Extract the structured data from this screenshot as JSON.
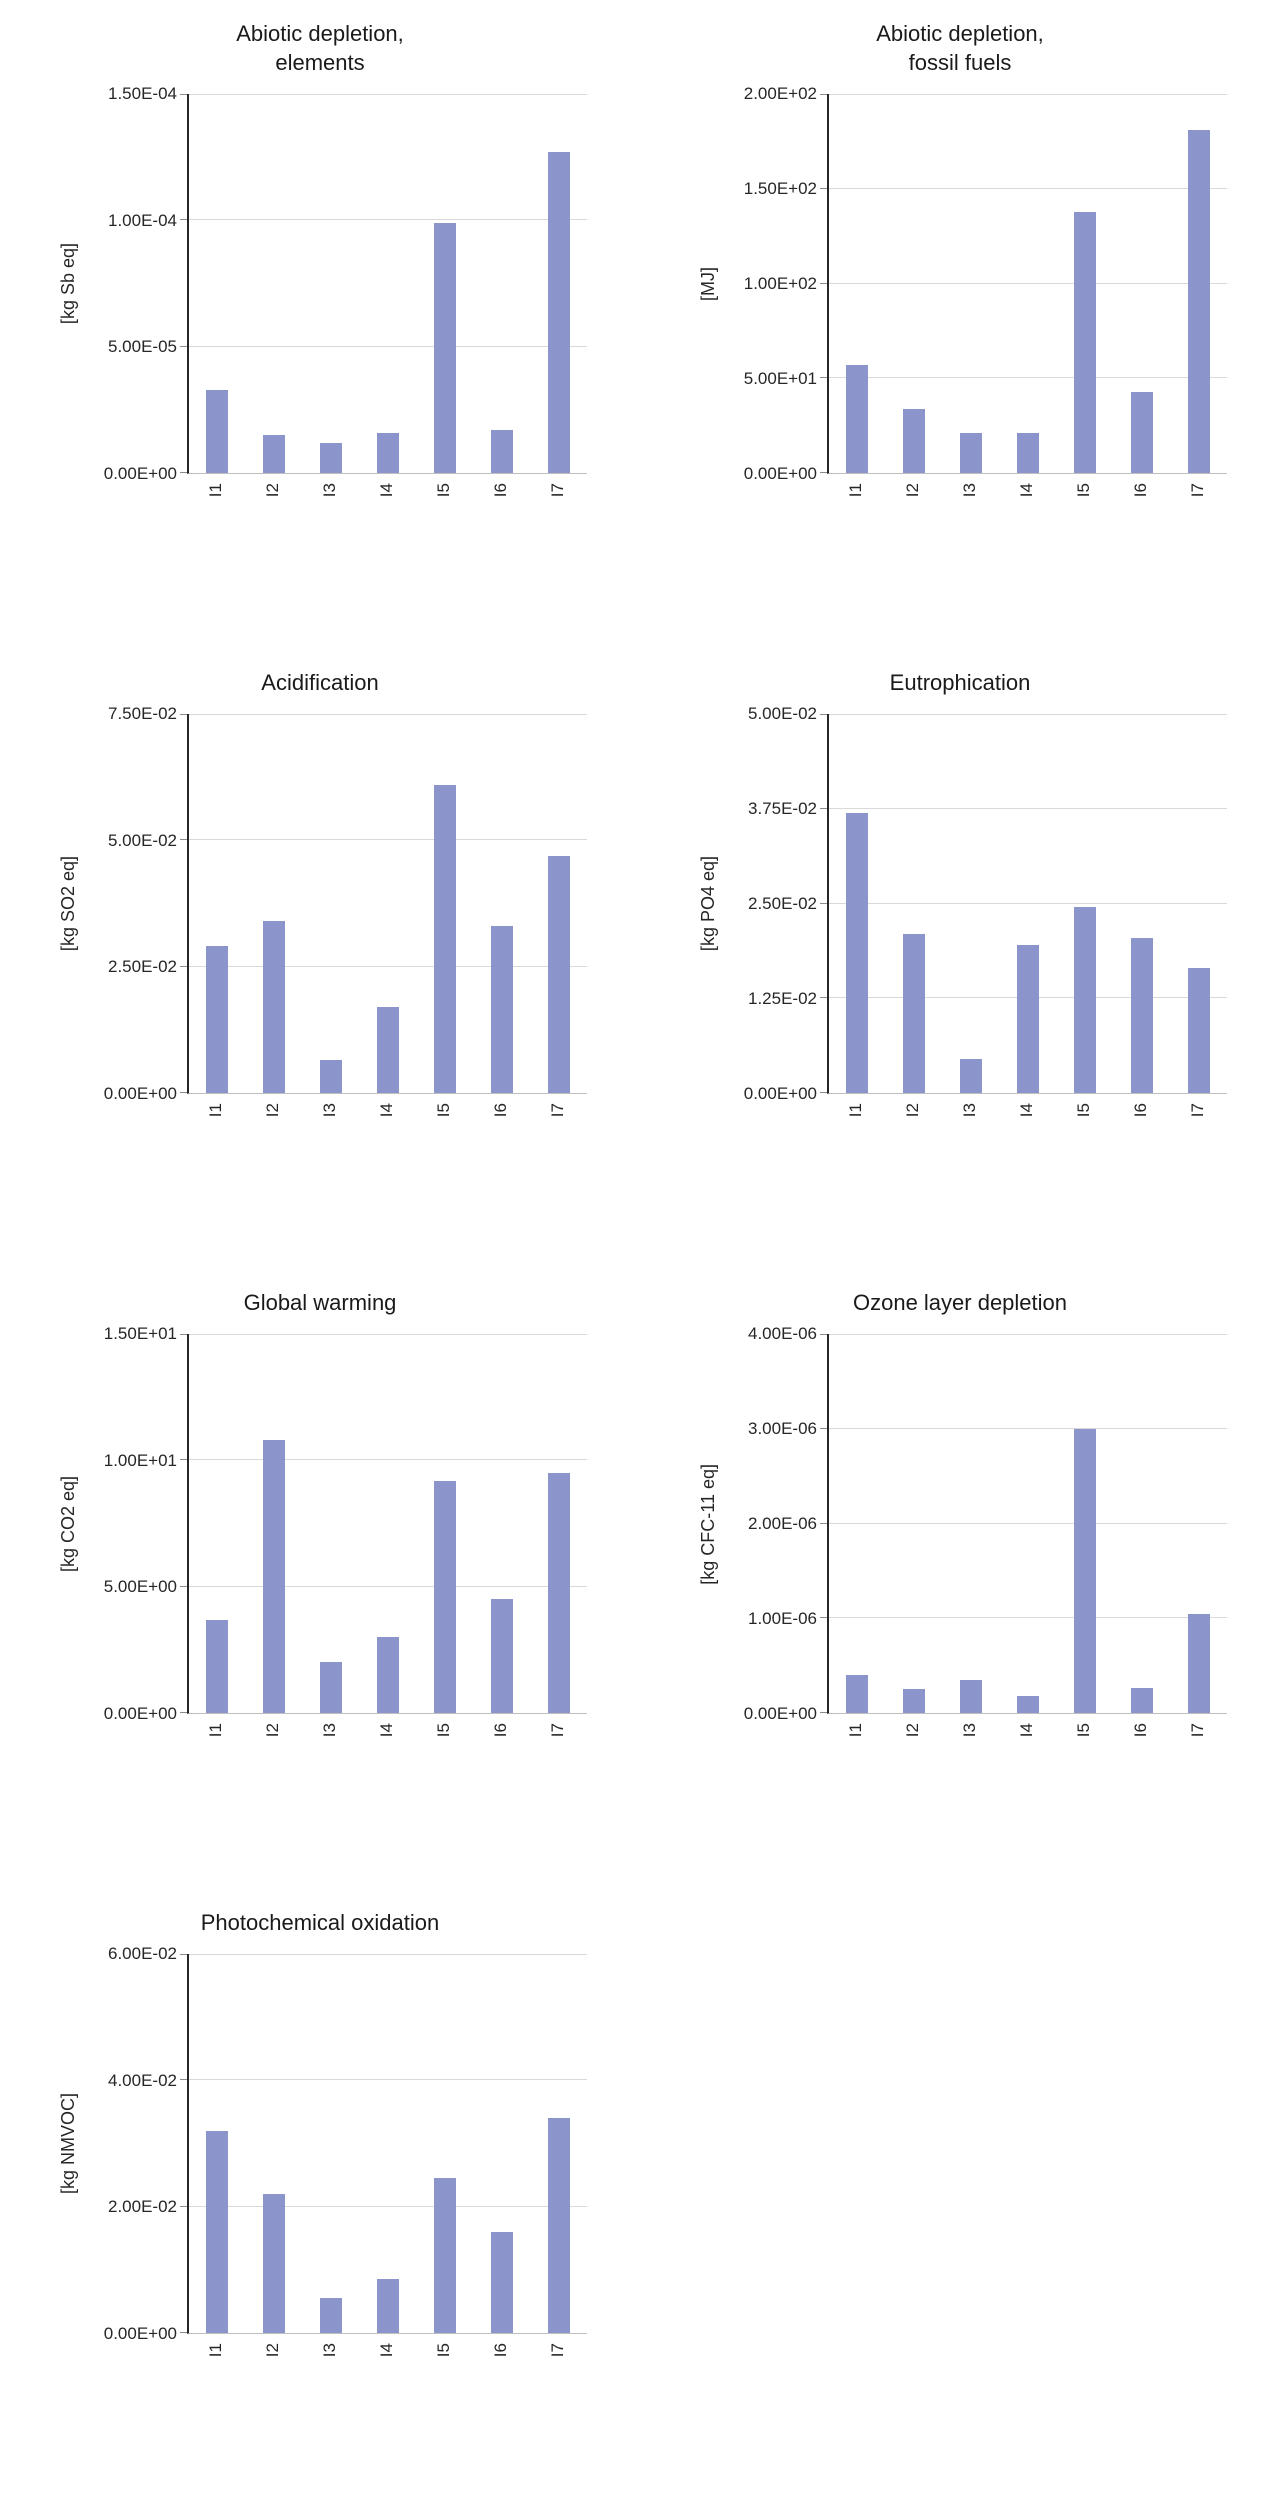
{
  "page": {
    "background": "#ffffff",
    "description_categories": [
      "I1",
      "I2",
      "I3",
      "I4",
      "I5",
      "I6",
      "I7"
    ]
  },
  "style": {
    "bar_color": "#8b94cb",
    "gridline_color": "#d9d9d9",
    "axis_line_color": "#262626",
    "baseline_color": "#bfbfbf",
    "text_color": "#262626"
  },
  "chart_data": [
    {
      "type": "bar",
      "slug": "abiotic-depletion-elements",
      "title": "Abiotic depletion, elements",
      "title_lines": [
        "Abiotic depletion,",
        "elements"
      ],
      "ylabel": "[kg Sb eq]",
      "xlabel": "",
      "categories": [
        "I1",
        "I2",
        "I3",
        "I4",
        "I5",
        "I6",
        "I7"
      ],
      "values": [
        3.3e-05,
        1.5e-05,
        1.2e-05,
        1.6e-05,
        9.9e-05,
        1.7e-05,
        0.000127
      ],
      "ylim": [
        0,
        0.00015
      ],
      "yticks": [
        {
          "value": 0,
          "label": "0.00E+00"
        },
        {
          "value": 5e-05,
          "label": "5.00E-05"
        },
        {
          "value": 0.0001,
          "label": "1.00E-04"
        },
        {
          "value": 0.00015,
          "label": "1.50E-04"
        }
      ],
      "grid": true,
      "legend": "none"
    },
    {
      "type": "bar",
      "slug": "abiotic-depletion-fossil-fuels",
      "title": "Abiotic depletion, fossil fuels",
      "title_lines": [
        "Abiotic depletion,",
        "fossil fuels"
      ],
      "ylabel": "[MJ]",
      "xlabel": "",
      "categories": [
        "I1",
        "I2",
        "I3",
        "I4",
        "I5",
        "I6",
        "I7"
      ],
      "values": [
        57,
        34,
        21,
        21,
        138,
        43,
        181
      ],
      "ylim": [
        0,
        200
      ],
      "yticks": [
        {
          "value": 0,
          "label": "0.00E+00"
        },
        {
          "value": 50,
          "label": "5.00E+01"
        },
        {
          "value": 100,
          "label": "1.00E+02"
        },
        {
          "value": 150,
          "label": "1.50E+02"
        },
        {
          "value": 200,
          "label": "2.00E+02"
        }
      ],
      "grid": true,
      "legend": "none"
    },
    {
      "type": "bar",
      "slug": "acidification",
      "title": "Acidification",
      "title_lines": [
        "Acidification"
      ],
      "ylabel": "[kg SO2 eq]",
      "xlabel": "",
      "categories": [
        "I1",
        "I2",
        "I3",
        "I4",
        "I5",
        "I6",
        "I7"
      ],
      "values": [
        0.029,
        0.034,
        0.0065,
        0.017,
        0.061,
        0.033,
        0.047
      ],
      "ylim": [
        0,
        0.075
      ],
      "yticks": [
        {
          "value": 0,
          "label": "0.00E+00"
        },
        {
          "value": 0.025,
          "label": "2.50E-02"
        },
        {
          "value": 0.05,
          "label": "5.00E-02"
        },
        {
          "value": 0.075,
          "label": "7.50E-02"
        }
      ],
      "grid": true,
      "legend": "none"
    },
    {
      "type": "bar",
      "slug": "eutrophication",
      "title": "Eutrophication",
      "title_lines": [
        "Eutrophication"
      ],
      "ylabel": "[kg PO4 eq]",
      "xlabel": "",
      "categories": [
        "I1",
        "I2",
        "I3",
        "I4",
        "I5",
        "I6",
        "I7"
      ],
      "values": [
        0.037,
        0.021,
        0.0045,
        0.0195,
        0.0245,
        0.0205,
        0.0165
      ],
      "ylim": [
        0,
        0.05
      ],
      "yticks": [
        {
          "value": 0,
          "label": "0.00E+00"
        },
        {
          "value": 0.0125,
          "label": "1.25E-02"
        },
        {
          "value": 0.025,
          "label": "2.50E-02"
        },
        {
          "value": 0.0375,
          "label": "3.75E-02"
        },
        {
          "value": 0.05,
          "label": "5.00E-02"
        }
      ],
      "grid": true,
      "legend": "none"
    },
    {
      "type": "bar",
      "slug": "global-warming",
      "title": "Global warming",
      "title_lines": [
        "Global warming"
      ],
      "ylabel": "[kg CO2 eq]",
      "xlabel": "",
      "categories": [
        "I1",
        "I2",
        "I3",
        "I4",
        "I5",
        "I6",
        "I7"
      ],
      "values": [
        3.7,
        10.8,
        2.0,
        3.0,
        9.2,
        4.5,
        9.5
      ],
      "ylim": [
        0,
        15
      ],
      "yticks": [
        {
          "value": 0,
          "label": "0.00E+00"
        },
        {
          "value": 5,
          "label": "5.00E+00"
        },
        {
          "value": 10,
          "label": "1.00E+01"
        },
        {
          "value": 15,
          "label": "1.50E+01"
        }
      ],
      "grid": true,
      "legend": "none"
    },
    {
      "type": "bar",
      "slug": "ozone-layer-depletion",
      "title": "Ozone layer depletion",
      "title_lines": [
        "Ozone layer depletion"
      ],
      "ylabel": "[kg CFC-11 eq]",
      "xlabel": "",
      "categories": [
        "I1",
        "I2",
        "I3",
        "I4",
        "I5",
        "I6",
        "I7"
      ],
      "values": [
        4e-07,
        2.5e-07,
        3.5e-07,
        1.8e-07,
        3e-06,
        2.6e-07,
        1.05e-06
      ],
      "ylim": [
        0,
        4e-06
      ],
      "yticks": [
        {
          "value": 0,
          "label": "0.00E+00"
        },
        {
          "value": 1e-06,
          "label": "1.00E-06"
        },
        {
          "value": 2e-06,
          "label": "2.00E-06"
        },
        {
          "value": 3e-06,
          "label": "3.00E-06"
        },
        {
          "value": 4e-06,
          "label": "4.00E-06"
        }
      ],
      "grid": true,
      "legend": "none"
    },
    {
      "type": "bar",
      "slug": "photochemical-oxidation",
      "title": "Photochemical oxidation",
      "title_lines": [
        "Photochemical oxidation"
      ],
      "ylabel": "[kg NMVOC]",
      "xlabel": "",
      "categories": [
        "I1",
        "I2",
        "I3",
        "I4",
        "I5",
        "I6",
        "I7"
      ],
      "values": [
        0.032,
        0.022,
        0.0055,
        0.0085,
        0.0245,
        0.016,
        0.034
      ],
      "ylim": [
        0,
        0.06
      ],
      "yticks": [
        {
          "value": 0,
          "label": "0.00E+00"
        },
        {
          "value": 0.02,
          "label": "2.00E-02"
        },
        {
          "value": 0.04,
          "label": "4.00E-02"
        },
        {
          "value": 0.06,
          "label": "6.00E-02"
        }
      ],
      "grid": true,
      "legend": "none"
    }
  ]
}
